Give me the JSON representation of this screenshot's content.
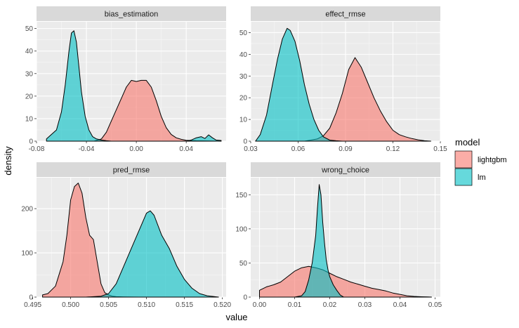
{
  "figure": {
    "xlabel": "value",
    "ylabel": "density"
  },
  "legend": {
    "title": "model",
    "items": [
      {
        "label": "lightgbm",
        "color": "#F8766D"
      },
      {
        "label": "lm",
        "color": "#00BFC4"
      }
    ],
    "position": "right"
  },
  "chart_data": [
    {
      "type": "area",
      "title": "bias_estimation",
      "xlim": [
        -0.08,
        0.072
      ],
      "ylim": [
        0,
        53
      ],
      "xticks": [
        -0.08,
        -0.04,
        0.0,
        0.04
      ],
      "xtick_labels": [
        "-0.08",
        "-0.04",
        "0.00",
        "0.04"
      ],
      "yticks": [
        0,
        10,
        20,
        30,
        40,
        50
      ],
      "ytick_labels": [
        "0",
        "10",
        "20",
        "30",
        "40",
        "50"
      ],
      "grid": true,
      "series": [
        {
          "name": "lightgbm",
          "x": [
            -0.034,
            -0.028,
            -0.024,
            -0.02,
            -0.016,
            -0.012,
            -0.008,
            -0.004,
            0.0,
            0.004,
            0.008,
            0.012,
            0.016,
            0.02,
            0.024,
            0.028,
            0.032,
            0.036,
            0.04,
            0.048,
            0.06,
            0.068
          ],
          "y": [
            0,
            1,
            4,
            9,
            14,
            19,
            24,
            27,
            26.5,
            27,
            27,
            24,
            18,
            11,
            6,
            3,
            1.5,
            0.8,
            0.4,
            0.2,
            0.1,
            0
          ]
        },
        {
          "name": "lm",
          "x": [
            -0.072,
            -0.068,
            -0.064,
            -0.06,
            -0.057,
            -0.054,
            -0.052,
            -0.05,
            -0.048,
            -0.046,
            -0.044,
            -0.041,
            -0.038,
            -0.035,
            -0.032,
            -0.028,
            -0.024,
            -0.02,
            0.04,
            0.044,
            0.048,
            0.052,
            0.055,
            0.058,
            0.061,
            0.064,
            0.068
          ],
          "y": [
            1,
            3,
            5,
            13,
            25,
            40,
            48,
            49,
            44,
            33,
            22,
            11,
            5,
            2,
            1,
            0.5,
            0.2,
            0,
            0,
            0.5,
            1.5,
            2,
            1.2,
            2.8,
            1.5,
            0.5,
            0.3
          ]
        }
      ]
    },
    {
      "type": "area",
      "title": "effect_rmse",
      "xlim": [
        0.03,
        0.15
      ],
      "ylim": [
        0,
        55
      ],
      "xticks": [
        0.03,
        0.06,
        0.09,
        0.12,
        0.15
      ],
      "xtick_labels": [
        "0.03",
        "0.06",
        "0.09",
        "0.12",
        "0.15"
      ],
      "yticks": [
        0,
        10,
        20,
        30,
        40,
        50
      ],
      "ytick_labels": [
        "0",
        "10",
        "20",
        "30",
        "40",
        "50"
      ],
      "grid": true,
      "series": [
        {
          "name": "lightgbm",
          "x": [
            0.064,
            0.068,
            0.072,
            0.076,
            0.08,
            0.084,
            0.088,
            0.092,
            0.096,
            0.1,
            0.104,
            0.108,
            0.112,
            0.116,
            0.12,
            0.124,
            0.128,
            0.132,
            0.136,
            0.14,
            0.144
          ],
          "y": [
            0,
            0.5,
            1,
            2.5,
            6,
            13,
            22,
            33,
            38.5,
            34,
            27,
            20,
            14,
            9,
            5,
            3,
            2,
            1.2,
            0.6,
            0.2,
            0
          ]
        },
        {
          "name": "lm",
          "x": [
            0.033,
            0.036,
            0.04,
            0.044,
            0.047,
            0.05,
            0.053,
            0.055,
            0.058,
            0.061,
            0.064,
            0.067,
            0.07,
            0.073,
            0.076,
            0.08,
            0.084,
            0.088
          ],
          "y": [
            0,
            3,
            12,
            27,
            38,
            47,
            52,
            51,
            46,
            37,
            26,
            17,
            10,
            5,
            2,
            0.5,
            0.2,
            0
          ]
        }
      ]
    },
    {
      "type": "area",
      "title": "pred_rmse",
      "xlim": [
        0.4955,
        0.5205
      ],
      "ylim": [
        0,
        270
      ],
      "xticks": [
        0.495,
        0.5,
        0.505,
        0.51,
        0.515,
        0.52
      ],
      "xtick_labels": [
        "0.495",
        "0.500",
        "0.505",
        "0.510",
        "0.515",
        "0.520"
      ],
      "yticks": [
        0,
        100,
        200
      ],
      "ytick_labels": [
        "0",
        "100",
        "200"
      ],
      "grid": true,
      "series": [
        {
          "name": "lightgbm",
          "x": [
            0.4963,
            0.497,
            0.498,
            0.499,
            0.4995,
            0.5,
            0.5005,
            0.501,
            0.5015,
            0.502,
            0.5025,
            0.503,
            0.5035,
            0.504,
            0.5045,
            0.505,
            0.5055,
            0.506,
            0.507,
            0.508,
            0.509
          ],
          "y": [
            5,
            8,
            25,
            80,
            140,
            220,
            250,
            258,
            235,
            180,
            140,
            130,
            80,
            30,
            10,
            5,
            2,
            1,
            0.5,
            0.2,
            0
          ]
        },
        {
          "name": "lm",
          "x": [
            0.4963,
            0.499,
            0.502,
            0.504,
            0.505,
            0.506,
            0.507,
            0.508,
            0.509,
            0.51,
            0.5105,
            0.511,
            0.512,
            0.513,
            0.514,
            0.515,
            0.516,
            0.517,
            0.518,
            0.519,
            0.5195
          ],
          "y": [
            0,
            0,
            0,
            2,
            8,
            30,
            70,
            110,
            150,
            190,
            195,
            185,
            140,
            110,
            70,
            40,
            20,
            8,
            3,
            1,
            0
          ]
        }
      ]
    },
    {
      "type": "area",
      "title": "wrong_choice",
      "xlim": [
        -0.0025,
        0.0515
      ],
      "ylim": [
        0,
        175
      ],
      "xticks": [
        0.0,
        0.01,
        0.02,
        0.03,
        0.04,
        0.05
      ],
      "xtick_labels": [
        "0.00",
        "0.01",
        "0.02",
        "0.03",
        "0.04",
        "0.05"
      ],
      "yticks": [
        0,
        50,
        100,
        150
      ],
      "ytick_labels": [
        "0",
        "50",
        "100",
        "150"
      ],
      "grid": true,
      "series": [
        {
          "name": "lightgbm",
          "x": [
            0.0,
            0.002,
            0.004,
            0.006,
            0.008,
            0.01,
            0.012,
            0.014,
            0.016,
            0.018,
            0.02,
            0.022,
            0.024,
            0.026,
            0.028,
            0.03,
            0.032,
            0.034,
            0.036,
            0.038,
            0.04,
            0.042,
            0.044,
            0.046,
            0.048,
            0.049
          ],
          "y": [
            10,
            15,
            18,
            22,
            30,
            38,
            43,
            45,
            43,
            40,
            35,
            30,
            26,
            22,
            19,
            16,
            13,
            11,
            9,
            6,
            4,
            2,
            1,
            0.5,
            0.2,
            0
          ]
        },
        {
          "name": "lm",
          "x": [
            0.01,
            0.012,
            0.013,
            0.014,
            0.015,
            0.016,
            0.0165,
            0.017,
            0.0175,
            0.018,
            0.0185,
            0.019,
            0.0195,
            0.02,
            0.021,
            0.022,
            0.023,
            0.024
          ],
          "y": [
            0,
            2,
            8,
            25,
            50,
            90,
            130,
            165,
            150,
            110,
            80,
            55,
            40,
            30,
            18,
            10,
            3,
            0
          ]
        }
      ]
    }
  ]
}
